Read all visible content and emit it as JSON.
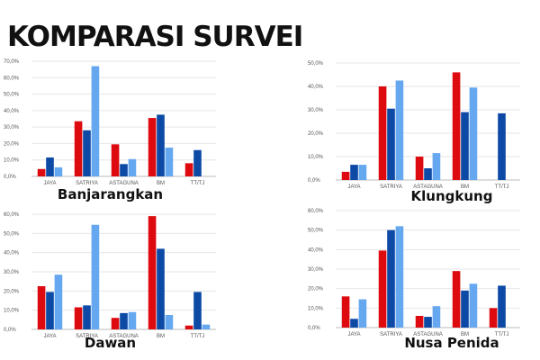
{
  "title": "KOMPARASI SURVEI",
  "colors": {
    "series_1": "#dd0a0f",
    "series_2": "#0c4aa6",
    "series_3": "#66a8f0"
  },
  "chart_data": [
    {
      "type": "bar",
      "title": "Banjarangkan",
      "categories": [
        "JAYA",
        "SATRIYA",
        "ASTAGUNA",
        "BM",
        "TT/TJ"
      ],
      "series": [
        {
          "values": [
            4.5,
            33.5,
            19.5,
            35.5,
            8
          ]
        },
        {
          "values": [
            11.5,
            28,
            7.5,
            37.5,
            16
          ]
        },
        {
          "values": [
            5.5,
            67,
            10.5,
            17.5,
            null
          ]
        }
      ],
      "ylim": [
        0,
        70
      ],
      "yticks": [
        "0,0%",
        "10,0%",
        "20,0%",
        "30,0%",
        "40,0%",
        "50,0%",
        "60,0%",
        "70,0%"
      ],
      "grid": true
    },
    {
      "type": "bar",
      "title": "Klungkung",
      "categories": [
        "JAYA",
        "SATRIYA",
        "ASTAGUNA",
        "BM",
        "TT/TJ"
      ],
      "series": [
        {
          "values": [
            3.5,
            40,
            10,
            46,
            null
          ]
        },
        {
          "values": [
            6.5,
            30.5,
            5,
            29,
            28.5
          ]
        },
        {
          "values": [
            6.5,
            42.5,
            11.5,
            39.5,
            null
          ]
        }
      ],
      "ylim": [
        0,
        50
      ],
      "yticks": [
        "0,0%",
        "10,0%",
        "20,0%",
        "30,0%",
        "40,0%",
        "50,0%"
      ],
      "grid": true
    },
    {
      "type": "bar",
      "title": "Dawan",
      "categories": [
        "JAYA",
        "SATRIYA",
        "ASTAGUNA",
        "BM",
        "TT/TJ"
      ],
      "series": [
        {
          "values": [
            22.5,
            11.5,
            6,
            59,
            2
          ]
        },
        {
          "values": [
            19.5,
            12.5,
            8.5,
            42,
            19.5
          ]
        },
        {
          "values": [
            28.5,
            54.5,
            9,
            7.5,
            2.5
          ]
        }
      ],
      "ylim": [
        0,
        60
      ],
      "yticks": [
        "0,0%",
        "10,0%",
        "20,0%",
        "30,0%",
        "40,0%",
        "50,0%",
        "60,0%"
      ],
      "grid": true
    },
    {
      "type": "bar",
      "title": "Nusa Penida",
      "categories": [
        "JAYA",
        "SATRIYA",
        "ASTAGUNA",
        "BM",
        "TT/TJ"
      ],
      "series": [
        {
          "values": [
            16,
            39.5,
            6,
            29,
            10
          ]
        },
        {
          "values": [
            4.5,
            50,
            5.5,
            19,
            21.5
          ]
        },
        {
          "values": [
            14.5,
            52,
            11,
            22.5,
            null
          ]
        }
      ],
      "ylim": [
        0,
        60
      ],
      "yticks": [
        "0,0%",
        "10,0%",
        "20,0%",
        "30,0%",
        "40,0%",
        "50,0%",
        "60,0%"
      ],
      "grid": true
    }
  ]
}
